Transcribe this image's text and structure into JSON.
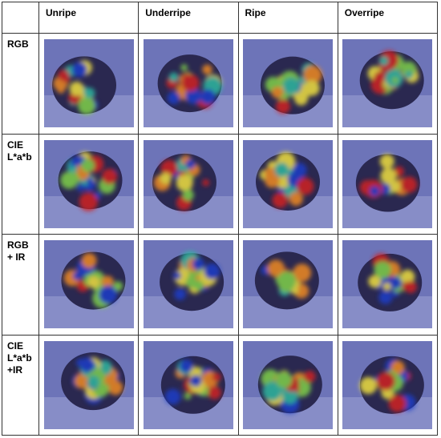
{
  "table": {
    "header": [
      "Unripe",
      "Underripe",
      "Ripe",
      "Overripe"
    ],
    "rows": [
      "RGB",
      "CIE L*a*b",
      "RGB + IR",
      "CIE L*a*b +IR"
    ]
  }
}
